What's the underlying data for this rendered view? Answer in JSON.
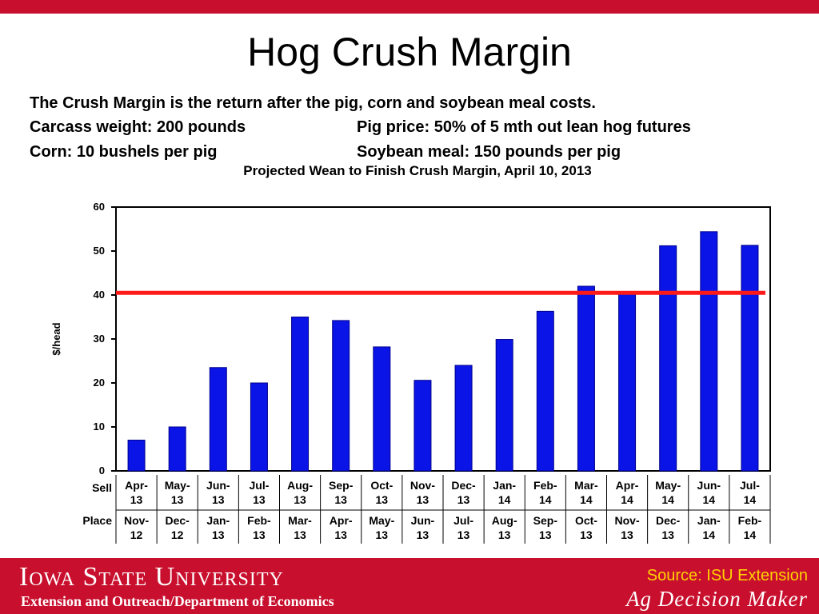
{
  "slide": {
    "title": "Hog Crush Margin",
    "description": {
      "line1": "The Crush Margin is the return after the pig, corn and soybean meal costs.",
      "carcass": "Carcass weight:  200 pounds",
      "pig_price": "Pig price:  50% of 5 mth out lean hog futures",
      "corn": "Corn:  10 bushels per pig",
      "soybean": "Soybean meal:  150 pounds per pig"
    },
    "accent_color": "#c8102e"
  },
  "chart_data": {
    "type": "bar",
    "title": "Projected Wean to Finish Crush Margin, April 10, 2013",
    "ylabel": "$/head",
    "xlabel": "",
    "ylim": [
      0,
      60
    ],
    "yticks": [
      0,
      10,
      20,
      30,
      40,
      50,
      60
    ],
    "row_labels": [
      "Sell",
      "Place"
    ],
    "sell_months": [
      "Apr-13",
      "May-13",
      "Jun-13",
      "Jul-13",
      "Aug-13",
      "Sep-13",
      "Oct-13",
      "Nov-13",
      "Dec-13",
      "Jan-14",
      "Feb-14",
      "Mar-14",
      "Apr-14",
      "May-14",
      "Jun-14",
      "Jul-14"
    ],
    "place_months": [
      "Nov-12",
      "Dec-12",
      "Jan-13",
      "Feb-13",
      "Mar-13",
      "Apr-13",
      "May-13",
      "Jun-13",
      "Jul-13",
      "Aug-13",
      "Sep-13",
      "Oct-13",
      "Nov-13",
      "Dec-13",
      "Jan-14",
      "Feb-14"
    ],
    "values": [
      7,
      10,
      23.5,
      20,
      35,
      34.2,
      28.2,
      20.6,
      24,
      29.9,
      36.3,
      42,
      40.5,
      51.2,
      54.4,
      51.3
    ],
    "reference_line": 40.5,
    "bar_color": "#0a14e6",
    "reference_color": "#ff1a1a",
    "grid": false
  },
  "footer": {
    "university": "Iowa State University",
    "department": "Extension and Outreach/Department of Economics",
    "source": "Source: ISU Extension",
    "program": "Ag Decision Maker",
    "source_color": "#ffd200"
  }
}
